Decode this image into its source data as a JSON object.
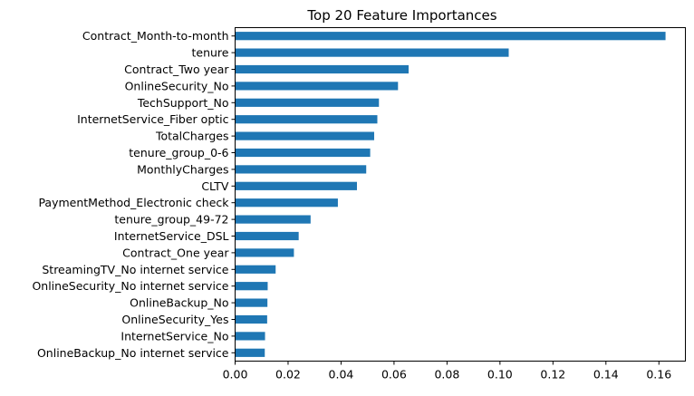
{
  "chart_data": {
    "type": "bar",
    "orientation": "horizontal",
    "title": "Top 20 Feature Importances",
    "xlabel": "",
    "ylabel": "",
    "xlim": [
      0,
      0.17
    ],
    "grid": false,
    "legend": "none",
    "bar_color": "#1f77b4",
    "categories": [
      "Contract_Month-to-month",
      "tenure",
      "Contract_Two year",
      "OnlineSecurity_No",
      "TechSupport_No",
      "InternetService_Fiber optic",
      "TotalCharges",
      "tenure_group_0-6",
      "MonthlyCharges",
      "CLTV",
      "PaymentMethod_Electronic check",
      "tenure_group_49-72",
      "InternetService_DSL",
      "Contract_One year",
      "StreamingTV_No internet service",
      "OnlineSecurity_No internet service",
      "OnlineBackup_No",
      "OnlineSecurity_Yes",
      "InternetService_No",
      "OnlineBackup_No internet service"
    ],
    "values": [
      0.1625,
      0.1033,
      0.0655,
      0.0615,
      0.0543,
      0.0537,
      0.0525,
      0.051,
      0.0495,
      0.046,
      0.0388,
      0.0285,
      0.024,
      0.0222,
      0.0153,
      0.0123,
      0.0122,
      0.0121,
      0.0113,
      0.0112
    ],
    "xticks": [
      0.0,
      0.02,
      0.04,
      0.06,
      0.08,
      0.1,
      0.12,
      0.14,
      0.16
    ],
    "xtick_labels": [
      "0.00",
      "0.02",
      "0.04",
      "0.06",
      "0.08",
      "0.10",
      "0.12",
      "0.14",
      "0.16"
    ]
  }
}
